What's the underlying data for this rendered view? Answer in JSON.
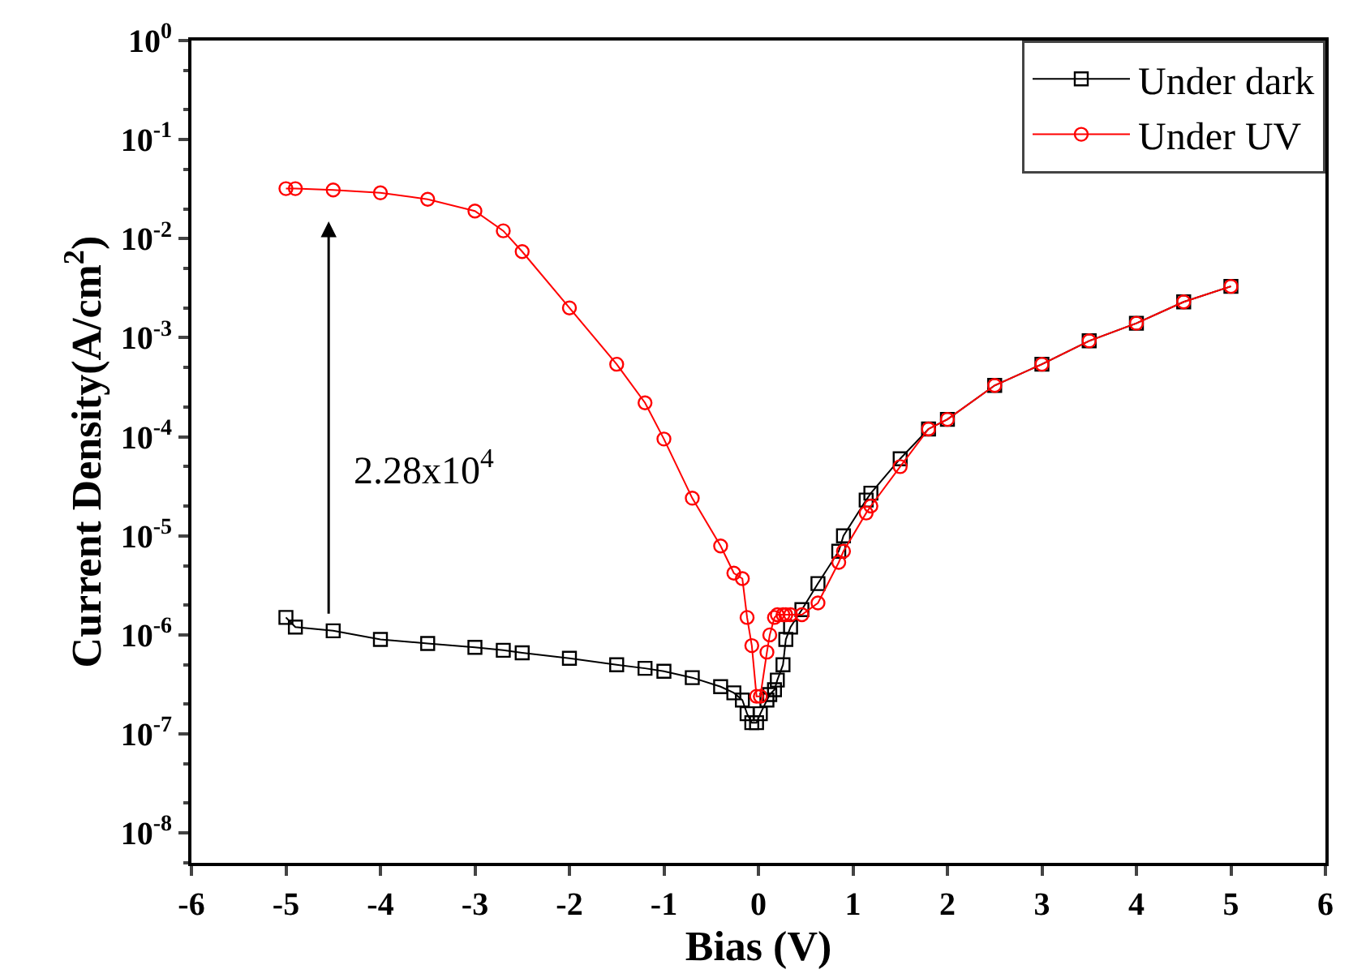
{
  "chart_data": {
    "type": "line",
    "xlabel": "Bias (V)",
    "ylabel": "Current Density(A/cm$^{2}$)",
    "x": [
      -5,
      -4.9,
      -4.5,
      -4,
      -3.5,
      -3,
      -2.7,
      -2.5,
      -2,
      -1.5,
      -1.2,
      -1,
      -0.7,
      -0.4,
      -0.26,
      -0.17,
      -0.12,
      -0.07,
      -0.02,
      0.02,
      0.09,
      0.12,
      0.17,
      0.2,
      0.26,
      0.29,
      0.34,
      0.46,
      0.63,
      0.85,
      0.9,
      1.14,
      1.19,
      1.5,
      1.8,
      2,
      2.5,
      3,
      3.5,
      4,
      4.5,
      5
    ],
    "series": [
      {
        "name": "Under dark",
        "color": "#000000",
        "marker": "square",
        "values": [
          1.5e-06,
          1.2e-06,
          1.1e-06,
          9e-07,
          8.2e-07,
          7.5e-07,
          7e-07,
          6.6e-07,
          5.8e-07,
          5e-07,
          4.6e-07,
          4.3e-07,
          3.7e-07,
          3e-07,
          2.6e-07,
          2.2e-07,
          1.6e-07,
          1.3e-07,
          1.3e-07,
          1.6e-07,
          2.2e-07,
          2.5e-07,
          2.8e-07,
          3.5e-07,
          5e-07,
          9e-07,
          1.2e-06,
          1.8e-06,
          3.3e-06,
          7e-06,
          1e-05,
          2.3e-05,
          2.7e-05,
          6e-05,
          0.00012,
          0.00015,
          0.00033,
          0.00054,
          0.00093,
          0.0014,
          0.0023,
          0.0033
        ]
      },
      {
        "name": "Under UV",
        "color": "#ff0000",
        "marker": "circle",
        "values": [
          0.032,
          0.032,
          0.031,
          0.029,
          0.025,
          0.019,
          0.012,
          0.0074,
          0.002,
          0.00054,
          0.00022,
          9.5e-05,
          2.4e-05,
          7.9e-06,
          4.2e-06,
          3.7e-06,
          1.5e-06,
          7.8e-07,
          2.4e-07,
          2.4e-07,
          6.7e-07,
          1e-06,
          1.5e-06,
          1.6e-06,
          1.6e-06,
          1.6e-06,
          1.6e-06,
          1.6e-06,
          2.1e-06,
          5.4e-06,
          7e-06,
          1.7e-05,
          2e-05,
          5e-05,
          0.00012,
          0.00015,
          0.00033,
          0.00054,
          0.00093,
          0.0014,
          0.0023,
          0.0033
        ]
      }
    ],
    "log": "y",
    "xlim": [
      -6,
      6
    ],
    "xticks": [
      -6,
      -5,
      -4,
      -3,
      -2,
      -1,
      0,
      1,
      2,
      3,
      4,
      5,
      6
    ],
    "ylim": [
      5e-09,
      1
    ],
    "yticks": [
      {
        "value": 1e-08,
        "label": "10$^{-8}$"
      },
      {
        "value": 1e-07,
        "label": "10$^{-7}$"
      },
      {
        "value": 1e-06,
        "label": "10$^{-6}$"
      },
      {
        "value": 1e-05,
        "label": "10$^{-5}$"
      },
      {
        "value": 0.0001,
        "label": "10$^{-4}$"
      },
      {
        "value": 0.001,
        "label": "10$^{-3}$"
      },
      {
        "value": 0.01,
        "label": "10$^{-2}$"
      },
      {
        "value": 0.1,
        "label": "10$^{-1}$"
      },
      {
        "value": 1,
        "label": "10$^{0}$"
      }
    ],
    "annotations": [
      "2.28x10$^{4}$"
    ],
    "legend": "top right",
    "line_style": "solid"
  }
}
